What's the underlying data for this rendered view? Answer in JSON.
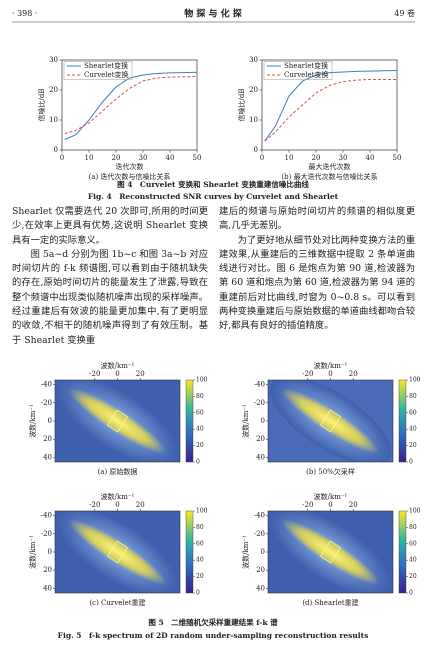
{
  "header": {
    "page": "· 398 ·",
    "journal": "物 探 与 化 探",
    "volume": "49 卷"
  },
  "figure4": {
    "caption_cn": "图 4　Curvelet 变换和 Shearlet 变换重建信噪比曲线",
    "caption_en": "Fig. 4　Reconstructed SNR curves by Curvelet and Shearlet",
    "panels": [
      {
        "xlabel": "迭代次数",
        "ylabel": "信噪比/dB",
        "caption": "(a) 迭代次数与信噪比关系",
        "xlim": [
          0,
          50
        ],
        "ylim": [
          0,
          30
        ],
        "xticks": [
          0,
          10,
          20,
          30,
          40,
          50
        ],
        "yticks": [
          0,
          10,
          20,
          30
        ],
        "x": [
          1,
          5,
          10,
          15,
          20,
          25,
          30,
          35,
          40,
          45,
          50
        ],
        "series": [
          {
            "name": "Shearlet变换",
            "color": "#3b7fc4",
            "dash": false,
            "values": [
              3.5,
              5,
              10,
              16,
              21,
              24,
              25,
              25.5,
              25.7,
              25.8,
              25.9
            ]
          },
          {
            "name": "Curvelet变换",
            "color": "#d9534f",
            "dash": true,
            "values": [
              5.5,
              6.5,
              9,
              13,
              17,
              20.5,
              23,
              24,
              24.3,
              24.4,
              24.5
            ]
          }
        ]
      },
      {
        "xlabel": "最大迭代次数",
        "ylabel": "信噪比/dB",
        "caption": "(b) 最大迭代次数与信噪比关系",
        "xlim": [
          0,
          50
        ],
        "ylim": [
          0,
          30
        ],
        "xticks": [
          0,
          10,
          20,
          30,
          40,
          50
        ],
        "yticks": [
          0,
          10,
          20,
          30
        ],
        "x": [
          1,
          5,
          10,
          15,
          20,
          25,
          30,
          35,
          40,
          45,
          50
        ],
        "series": [
          {
            "name": "Shearlet变换",
            "color": "#3b7fc4",
            "dash": false,
            "values": [
              3,
              8,
              18,
              23,
              25,
              25.8,
              26,
              26.2,
              26.3,
              26.4,
              26.5
            ]
          },
          {
            "name": "Curvelet变换",
            "color": "#d9534f",
            "dash": true,
            "values": [
              3,
              6,
              11,
              15,
              19,
              21.5,
              22.8,
              23.3,
              23.5,
              23.5,
              23.5
            ]
          }
        ]
      }
    ]
  },
  "body": {
    "left": [
      "Shearlet 仅需要迭代 20 次即可,所用的时间更少,在效率上更具有优势,这说明 Shearlet 变换具有一定的实际意义。",
      "图 5a~d 分别为图 1b~c 和图 3a~b 对应时间切片的 f-k 频谱图,可以看到由于随机缺失的存在,原始时间切片的能量发生了泄露,导致在整个频谱中出现类似随机噪声出现的采样噪声。经过重建后有效波的能量更加集中,有了更明显的收敛,不相干的随机噪声得到了有效压制。基于 Shearlet 变换重"
    ],
    "right": [
      "建后的频谱与原始时间切片的频谱的相似度更高,几乎无差别。",
      "为了更好地从细节处对比两种变换方法的重建效果,从重建后的三维数据中提取 2 条单道曲线进行对比。图 6 是炮点为第 90 道,检波器为第 60 道和炮点为第 60 道,检波器为第 94 道的重建前后对比曲线,时窗为 0~0.8 s。可以看到两种变换重建后与原始数据的单道曲线都吻合较好,都具有良好的插值精度。"
    ]
  },
  "figure5": {
    "caption_cn": "图 5　二维随机欠采样重建结果 f-k 谱",
    "caption_en": "Fig. 5　f-k spectrum of 2D random under-sampling reconstruction results",
    "xlabel": "波数/km⁻¹",
    "ylabel": "波数/km⁻¹",
    "xlim": [
      -55,
      55
    ],
    "ylim": [
      -45,
      45
    ],
    "xticks": [
      -20,
      0,
      20
    ],
    "yticks": [
      -40,
      -20,
      0,
      20,
      40
    ],
    "colorbar_ticks": [
      0,
      20,
      40,
      60,
      80,
      100
    ],
    "panels": [
      {
        "caption": "(a) 原始数据"
      },
      {
        "caption": "(b) 50%欠采样"
      },
      {
        "caption": "(c) Curvelet重建"
      },
      {
        "caption": "(d) Shearlet重建"
      }
    ]
  }
}
